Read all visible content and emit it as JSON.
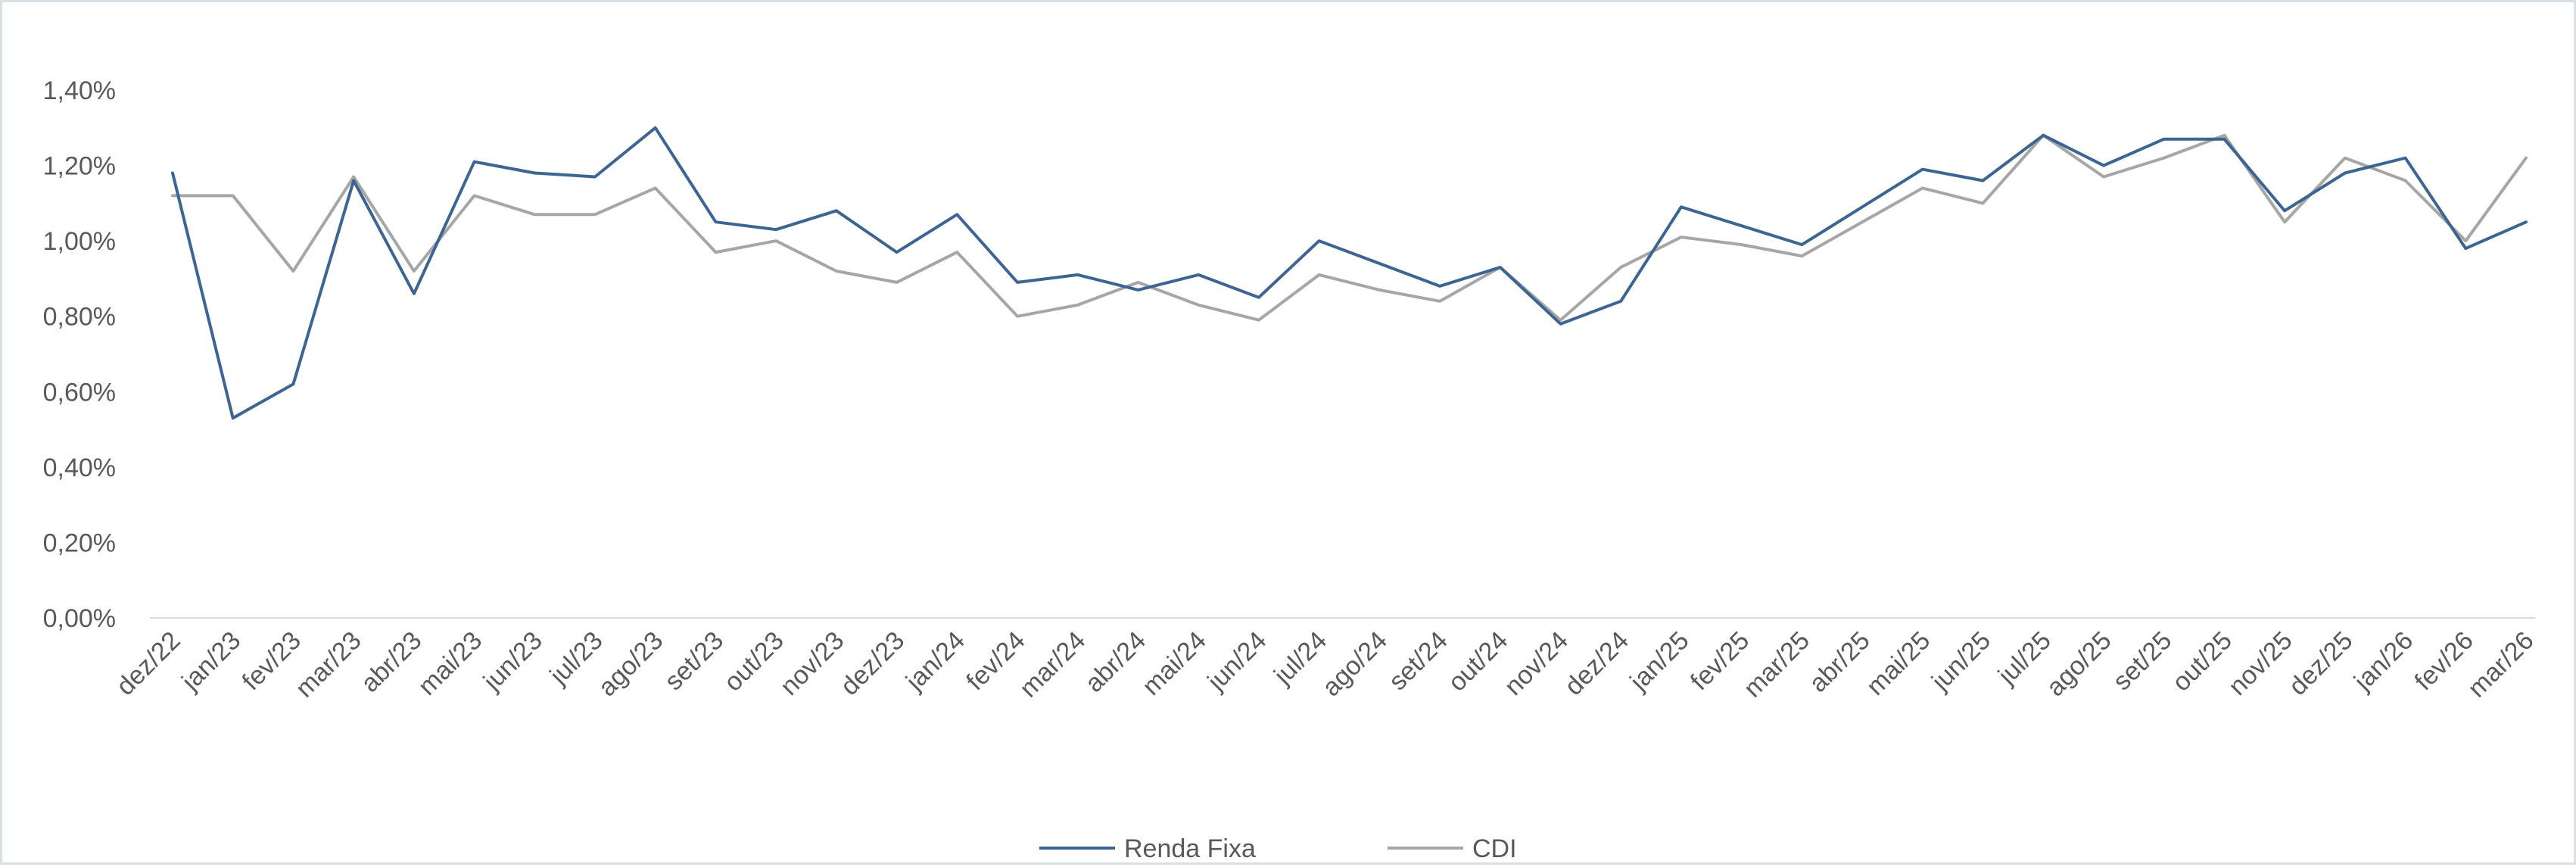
{
  "chart_data": {
    "type": "line",
    "title": "",
    "xlabel": "",
    "ylabel": "",
    "ylim": [
      0,
      1.4
    ],
    "y_ticks": [
      "0,00%",
      "0,20%",
      "0,40%",
      "0,60%",
      "0,80%",
      "1,00%",
      "1,20%",
      "1,40%"
    ],
    "y_tick_values": [
      0,
      0.2,
      0.4,
      0.6,
      0.8,
      1.0,
      1.2,
      1.4
    ],
    "grid": false,
    "legend_position": "bottom",
    "categories": [
      "dez/22",
      "jan/23",
      "fev/23",
      "mar/23",
      "abr/23",
      "mai/23",
      "jun/23",
      "jul/23",
      "ago/23",
      "set/23",
      "out/23",
      "nov/23",
      "dez/23",
      "jan/24",
      "fev/24",
      "mar/24",
      "abr/24",
      "mai/24",
      "jun/24",
      "jul/24",
      "ago/24",
      "set/24",
      "out/24",
      "nov/24",
      "dez/24",
      "jan/25",
      "fev/25",
      "mar/25",
      "abr/25",
      "mai/25",
      "jun/25",
      "jul/25",
      "ago/25",
      "set/25",
      "out/25",
      "nov/25",
      "dez/25",
      "jan/26",
      "fev/26",
      "mar/26"
    ],
    "series": [
      {
        "name": "Renda Fixa",
        "color": "#3c6593",
        "values": [
          1.18,
          0.53,
          0.62,
          1.16,
          0.86,
          1.21,
          1.18,
          1.17,
          1.3,
          1.05,
          1.03,
          1.08,
          0.97,
          1.07,
          0.89,
          0.91,
          0.87,
          0.91,
          0.85,
          1.0,
          0.94,
          0.88,
          0.93,
          0.78,
          0.84,
          1.09,
          1.04,
          0.99,
          1.09,
          1.19,
          1.16,
          1.28,
          1.2,
          1.27,
          1.27,
          1.08,
          1.18,
          1.22,
          0.98,
          1.05
        ]
      },
      {
        "name": "CDI",
        "color": "#a6a6a6",
        "values": [
          1.12,
          1.12,
          0.92,
          1.17,
          0.92,
          1.12,
          1.07,
          1.07,
          1.14,
          0.97,
          1.0,
          0.92,
          0.89,
          0.97,
          0.8,
          0.83,
          0.89,
          0.83,
          0.79,
          0.91,
          0.87,
          0.84,
          0.93,
          0.79,
          0.93,
          1.01,
          0.99,
          0.96,
          1.05,
          1.14,
          1.1,
          1.28,
          1.17,
          1.22,
          1.28,
          1.05,
          1.22,
          1.16,
          1.0,
          1.22
        ]
      }
    ]
  }
}
